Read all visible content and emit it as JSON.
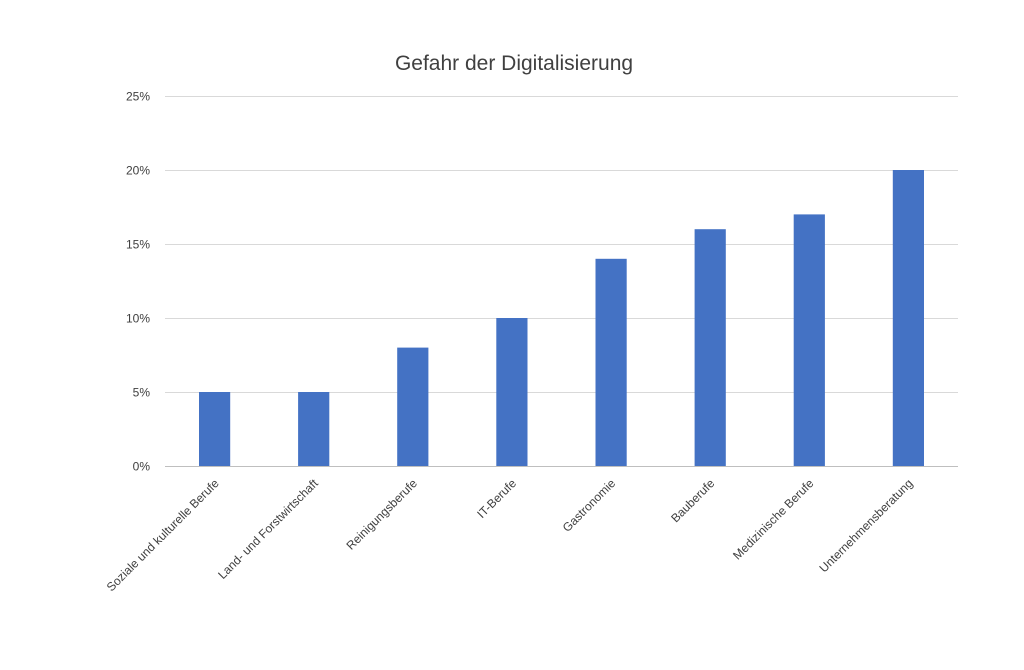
{
  "chart_data": {
    "type": "bar",
    "title": "Gefahr der Digitalisierung",
    "xlabel": "",
    "ylabel": "",
    "categories": [
      "Soziale und kulturelle Berufe",
      "Land- und Forstwirtschaft",
      "Reinigungsberufe",
      "IT-Berufe",
      "Gastronomie",
      "Bauberufe",
      "Medizinische Berufe",
      "Unternehmensberatung"
    ],
    "values": [
      0.05,
      0.05,
      0.08,
      0.1,
      0.14,
      0.16,
      0.17,
      0.2
    ],
    "ylim": [
      0,
      0.25
    ],
    "yticks": [
      0,
      0.05,
      0.1,
      0.15,
      0.2,
      0.25
    ],
    "ytick_labels": [
      "0%",
      "5%",
      "10%",
      "15%",
      "20%",
      "25%"
    ],
    "grid": true,
    "legend": "none",
    "bar_color": "#4472c4"
  }
}
